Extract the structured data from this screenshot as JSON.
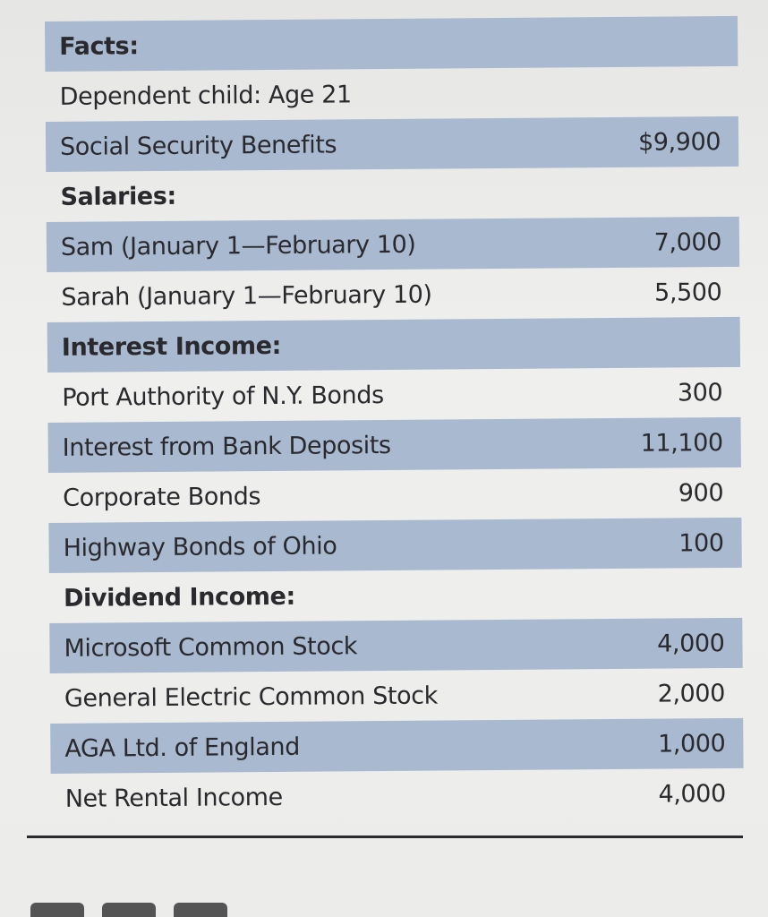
{
  "rows": [
    {
      "label": "Facts:",
      "value": "",
      "header": true,
      "shaded": true
    },
    {
      "label": "Dependent child: Age 21",
      "value": "",
      "header": false,
      "shaded": false
    },
    {
      "label": "Social Security Benefits",
      "value": "$9,900",
      "header": false,
      "shaded": true
    },
    {
      "label": "Salaries:",
      "value": "",
      "header": true,
      "shaded": false
    },
    {
      "label": "Sam (January 1—February 10)",
      "value": "7,000",
      "header": false,
      "shaded": true
    },
    {
      "label": "Sarah (January 1—February 10)",
      "value": "5,500",
      "header": false,
      "shaded": false
    },
    {
      "label": "Interest Income:",
      "value": "",
      "header": true,
      "shaded": true
    },
    {
      "label": "Port Authority of N.Y. Bonds",
      "value": "300",
      "header": false,
      "shaded": false
    },
    {
      "label": "Interest from Bank Deposits",
      "value": "11,100",
      "header": false,
      "shaded": true
    },
    {
      "label": "Corporate Bonds",
      "value": "900",
      "header": false,
      "shaded": false
    },
    {
      "label": "Highway Bonds of Ohio",
      "value": "100",
      "header": false,
      "shaded": true
    },
    {
      "label": "Dividend Income:",
      "value": "",
      "header": true,
      "shaded": false
    },
    {
      "label": "Microsoft Common Stock",
      "value": "4,000",
      "header": false,
      "shaded": true
    },
    {
      "label": "General Electric Common Stock",
      "value": "2,000",
      "header": false,
      "shaded": false
    },
    {
      "label": "AGA Ltd. of England",
      "value": "1,000",
      "header": false,
      "shaded": true
    },
    {
      "label": "Net Rental Income",
      "value": "4,000",
      "header": false,
      "shaded": false
    }
  ],
  "colors": {
    "shade": "#a9b9d0",
    "text": "#2a2a2e"
  }
}
